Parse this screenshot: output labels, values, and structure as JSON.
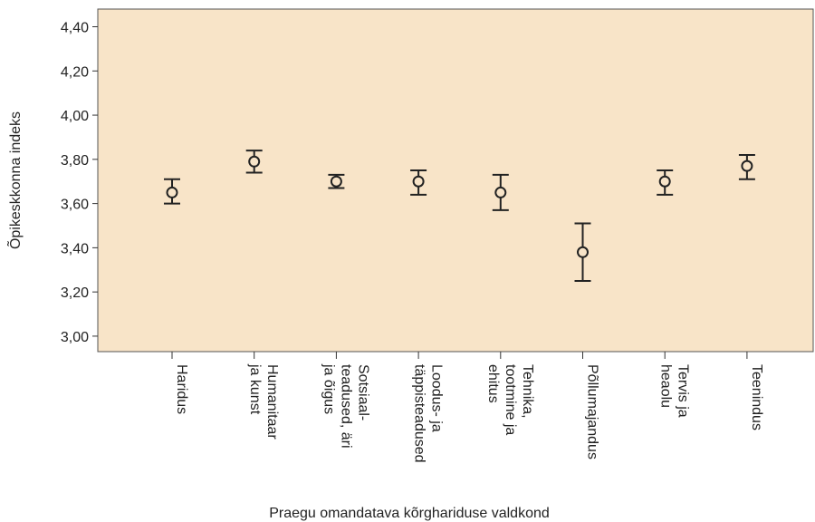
{
  "chart_data": {
    "type": "errorbar",
    "title": "",
    "xlabel": "Praegu omandatava kõrghariduse valdkond",
    "ylabel": "Õpikeskkonna indeks",
    "ylim": [
      2.93,
      4.48
    ],
    "yticks": [
      "3,00",
      "3,20",
      "3,40",
      "3,60",
      "3,80",
      "4,00",
      "4,20",
      "4,40"
    ],
    "ytick_values": [
      3.0,
      3.2,
      3.4,
      3.6,
      3.8,
      4.0,
      4.2,
      4.4
    ],
    "categories": [
      [
        "Haridus"
      ],
      [
        "Humanitaar",
        "ja kunst"
      ],
      [
        "Sotsiaal-",
        "teadused, äri",
        "ja õigus"
      ],
      [
        "Loodus- ja",
        "täppisteadused"
      ],
      [
        "Tehnika,",
        "tootmine ja",
        "ehitus"
      ],
      [
        "Põllumajandus"
      ],
      [
        "Tervis ja",
        "heaolu"
      ],
      [
        "Teenindus"
      ]
    ],
    "means": [
      3.65,
      3.79,
      3.7,
      3.7,
      3.65,
      3.38,
      3.7,
      3.77
    ],
    "lower": [
      3.6,
      3.74,
      3.67,
      3.64,
      3.57,
      3.25,
      3.64,
      3.71
    ],
    "upper": [
      3.71,
      3.84,
      3.73,
      3.75,
      3.73,
      3.51,
      3.75,
      3.82
    ],
    "grid": false,
    "colors": {
      "plot_background": "#f8e4c8",
      "marks": "#222222",
      "frame": "#555555"
    }
  }
}
